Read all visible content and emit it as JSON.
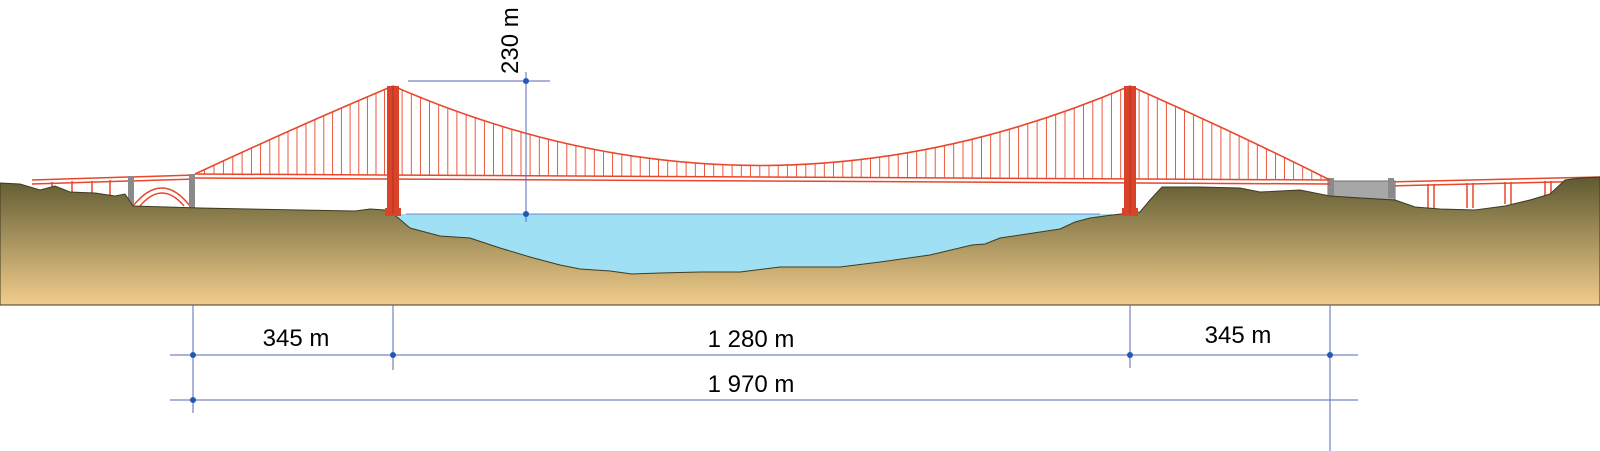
{
  "labels": {
    "height": "230 m",
    "left_span": "345 m",
    "main_span": "1 280 m",
    "right_span": "345 m",
    "total_length": "1 970 m"
  },
  "colors": {
    "bridge": "#e8472b",
    "tower": "#d9432a",
    "water": "#9fe0f5",
    "ground_top": "#5e5a31",
    "ground_bottom": "#f2cd8c",
    "dimension_line": "#5a67b5",
    "dimension_dot": "#1e5bb3",
    "pier_gray": "#8a8a8a"
  }
}
